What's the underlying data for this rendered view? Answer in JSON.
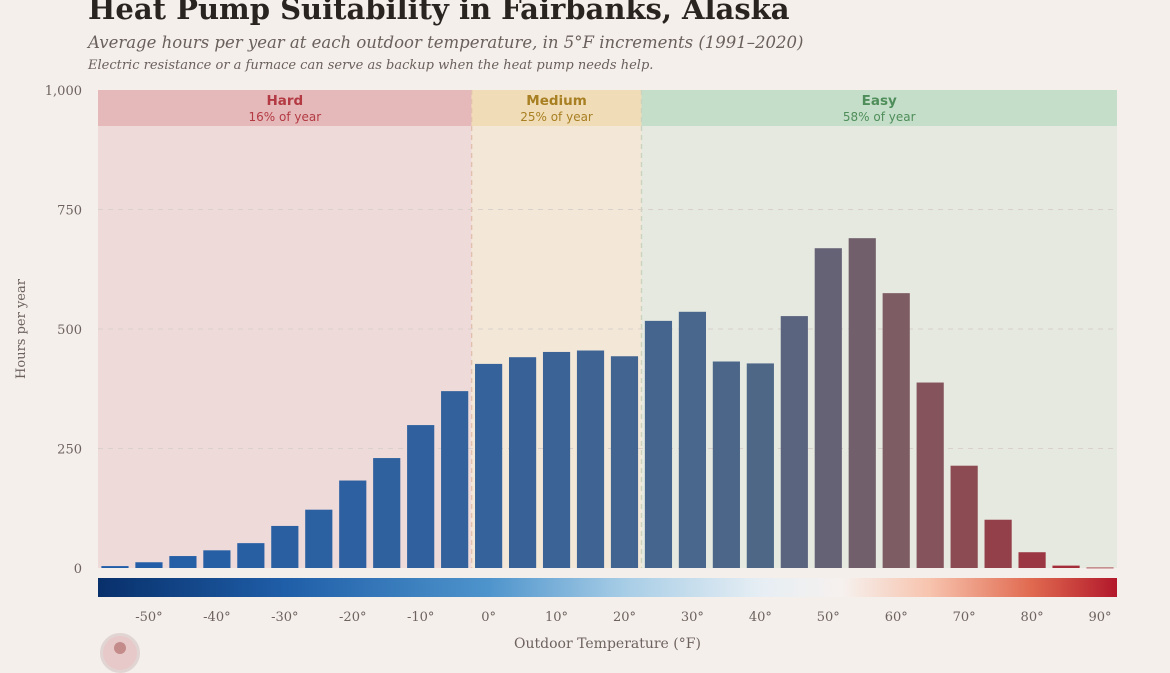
{
  "title": "Heat Pump Suitability in Fairbanks, Alaska",
  "subtitle": "Average hours per year at each outdoor temperature, in 5°F increments (1991–2020)",
  "note": "Electric resistance or a furnace can serve as backup when the heat pump needs help.",
  "chart_data": {
    "type": "bar",
    "xlabel": "Outdoor Temperature (°F)",
    "ylabel": "Hours per year",
    "ylim": [
      0,
      1000
    ],
    "yticks": [
      0,
      250,
      500,
      750,
      1000
    ],
    "ytick_labels": [
      "0",
      "250",
      "500",
      "750",
      "1,000"
    ],
    "xlim": [
      -57.5,
      92.5
    ],
    "xticks": [
      -50,
      -40,
      -30,
      -20,
      -10,
      0,
      10,
      20,
      30,
      40,
      50,
      60,
      70,
      80,
      90
    ],
    "xtick_labels": [
      "-50°",
      "-40°",
      "-30°",
      "-20°",
      "-10°",
      "0°",
      "10°",
      "20°",
      "30°",
      "40°",
      "50°",
      "60°",
      "70°",
      "80°",
      "90°"
    ],
    "bin_centers": [
      -55,
      -50,
      -45,
      -40,
      -35,
      -30,
      -25,
      -20,
      -15,
      -10,
      -5,
      0,
      5,
      10,
      15,
      20,
      25,
      30,
      35,
      40,
      45,
      50,
      55,
      60,
      65,
      70,
      75,
      80,
      85,
      90
    ],
    "values": [
      4,
      12,
      25,
      37,
      52,
      88,
      122,
      183,
      230,
      299,
      370,
      427,
      441,
      452,
      455,
      443,
      517,
      536,
      432,
      428,
      527,
      669,
      690,
      575,
      388,
      214,
      101,
      33,
      5,
      1
    ],
    "zones": [
      {
        "label": "Hard",
        "share": "16% of year",
        "x_range": [
          -57.5,
          -2.5
        ],
        "fill": "#efdada",
        "band": "#e5b9ba",
        "text_color": "#b33a43"
      },
      {
        "label": "Medium",
        "share": "25% of year",
        "x_range": [
          -2.5,
          22.5
        ],
        "fill": "#f3e8d8",
        "band": "#f0ddb7",
        "text_color": "#a87f22"
      },
      {
        "label": "Easy",
        "share": "58% of year",
        "x_range": [
          22.5,
          92.5
        ],
        "fill": "#e5e9e0",
        "band": "#c5dec9",
        "text_color": "#4f8e5a"
      }
    ],
    "colorbar": {
      "range": [
        -57.5,
        92.5
      ],
      "stops": [
        {
          "v": -57.5,
          "c": "#08306b"
        },
        {
          "v": -30,
          "c": "#1f5ea8"
        },
        {
          "v": 0,
          "c": "#4e94cc"
        },
        {
          "v": 20,
          "c": "#a7cde6"
        },
        {
          "v": 40,
          "c": "#e6eef4"
        },
        {
          "v": 52,
          "c": "#f6f1ee"
        },
        {
          "v": 65,
          "c": "#f7c3ad"
        },
        {
          "v": 80,
          "c": "#e0694f"
        },
        {
          "v": 92.5,
          "c": "#b2182b"
        }
      ]
    },
    "bar_colors": {
      "cold": "#225ea8",
      "mid": "#4f6787",
      "warm": "#7d5c63",
      "hot": "#a32e3a"
    },
    "grid": true
  }
}
